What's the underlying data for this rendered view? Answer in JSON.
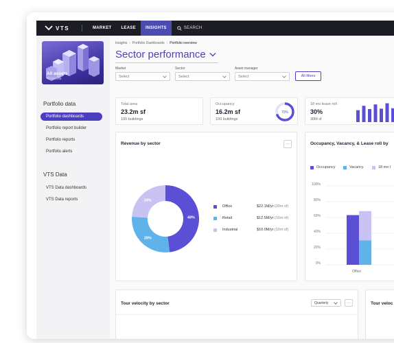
{
  "nav": {
    "logo_text": "VTS",
    "items": [
      {
        "label": "MARKET"
      },
      {
        "label": "LEASE"
      },
      {
        "label": "INSIGHTS"
      }
    ],
    "search_label": "SEARCH"
  },
  "sidebar": {
    "assets_title": "All assets",
    "assets_sub": "45 assets",
    "section1": "Portfolio data",
    "section1_items": [
      {
        "label": "Portfolio dashboards"
      },
      {
        "label": "Portfolio report builder"
      },
      {
        "label": "Portfolio reports"
      },
      {
        "label": "Portfolio alerts"
      }
    ],
    "section2": "VTS Data",
    "section2_items": [
      {
        "label": "VTS Data dashboards"
      },
      {
        "label": "VTS Data reports"
      }
    ]
  },
  "breadcrumb": [
    "Insights",
    "Portfolio Dashboards",
    "Portfolio overview"
  ],
  "page_title": "Sector performance",
  "filters": [
    {
      "label": "Market",
      "value": "Select"
    },
    {
      "label": "Sector",
      "value": "Select"
    },
    {
      "label": "Asset manager",
      "value": "Select"
    }
  ],
  "all_filters_label": "All filters",
  "kpis": [
    {
      "label": "Total area",
      "value": "23.2m sf",
      "sub": "100 buildings"
    },
    {
      "label": "Occupancy",
      "value": "16.2m sf",
      "sub": "100 buildings",
      "ring_label": "70%"
    },
    {
      "label": "18 mo lease roll",
      "value": "30%",
      "sub": "30M sf"
    }
  ],
  "kpi_occupancy_fraction": 0.7,
  "lease_roll_spark": [
    0.62,
    0.85,
    0.68,
    0.92,
    0.7,
    0.98,
    0.72,
    0.88
  ],
  "revenue_card": {
    "title": "Revenue by sector",
    "more": "···",
    "legend": [
      {
        "name": "Office",
        "value": "$22.1M/yr",
        "area": "(20m sf)"
      },
      {
        "name": "Retail",
        "value": "$12.5M/yr",
        "area": "(16m sf)"
      },
      {
        "name": "Industrial",
        "value": "$10.0M/yr",
        "area": "(10m sf)"
      }
    ]
  },
  "ovl_card": {
    "title": "Occupancy, Vacancy, & Lease roll by",
    "legend": [
      "Occupancy",
      "Vacancy",
      "18 mo l"
    ],
    "y_ticks": [
      "100%",
      "80%",
      "60%",
      "40%",
      "20%",
      "0%"
    ],
    "x_label": "Office"
  },
  "tour_card": {
    "title": "Tour velocity by sector",
    "select_value": "Quarterly",
    "more": "···"
  },
  "tour_card2": {
    "title": "Tour veloc"
  },
  "colors": {
    "accent": "#4b3fc0",
    "office": "#5b4fd6",
    "retail": "#5fb3ea",
    "industrial": "#c9c3f3"
  },
  "chart_data": [
    {
      "type": "pie",
      "title": "Revenue by sector",
      "categories": [
        "Office",
        "Retail",
        "Industrial"
      ],
      "values": [
        48,
        28,
        24
      ],
      "data_labels": [
        "48%",
        "28%",
        "24%"
      ]
    },
    {
      "type": "bar",
      "title": "Occupancy, Vacancy, & Lease roll by",
      "categories": [
        "Office"
      ],
      "series": [
        {
          "name": "Occupancy",
          "values": [
            63
          ]
        },
        {
          "name": "Vacancy",
          "values": [
            37
          ]
        },
        {
          "name": "18 mo l",
          "values": [
            31
          ]
        }
      ],
      "ylim": [
        0,
        100
      ]
    }
  ]
}
